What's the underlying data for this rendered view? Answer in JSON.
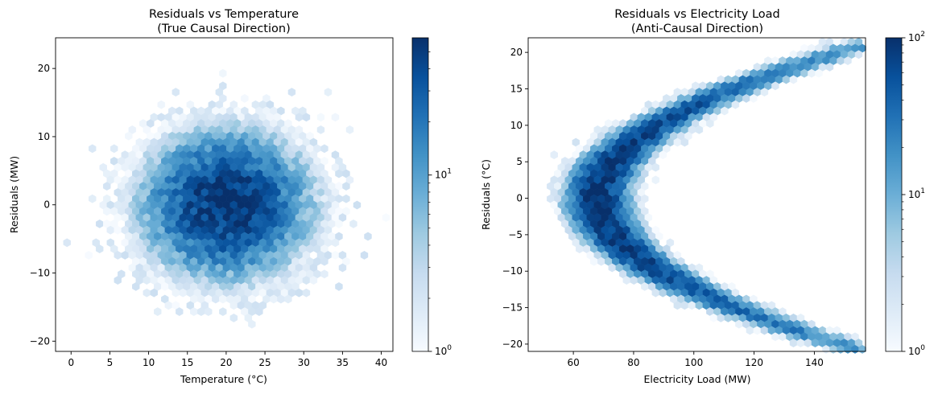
{
  "chart_data": [
    {
      "type": "hexbin",
      "title": "Residuals vs Temperature",
      "subtitle": "(True Causal Direction)",
      "xlabel": "Temperature (°C)",
      "ylabel": "Residuals (MW)",
      "xlim": [
        -2,
        41.5
      ],
      "ylim": [
        -21.5,
        24.5
      ],
      "xticks": [
        0,
        5,
        10,
        15,
        20,
        25,
        30,
        35,
        40
      ],
      "yticks": [
        -20,
        -10,
        0,
        10,
        20
      ],
      "xtick_labels": [
        "0",
        "5",
        "10",
        "15",
        "20",
        "25",
        "30",
        "35",
        "40"
      ],
      "ytick_labels": [
        "−20",
        "−10",
        "0",
        "10",
        "20"
      ],
      "colormap": "Blues",
      "color_scale": "log",
      "colorbar": {
        "min": 1,
        "max": 60,
        "ticks": [
          1,
          10
        ],
        "tick_labels": [
          {
            "base": "10",
            "exp": "0"
          },
          {
            "base": "10",
            "exp": "1"
          }
        ]
      },
      "distribution": {
        "shape": "blob",
        "center": [
          20,
          0
        ],
        "spread": [
          5,
          5
        ],
        "peak_count": 60
      }
    },
    {
      "type": "hexbin",
      "title": "Residuals vs Electricity Load",
      "subtitle": "(Anti-Causal Direction)",
      "xlabel": "Electricity Load (MW)",
      "ylabel": "Residuals (°C)",
      "xlim": [
        45,
        157
      ],
      "ylim": [
        -21,
        22
      ],
      "xticks": [
        60,
        80,
        100,
        120,
        140
      ],
      "yticks": [
        -20,
        -15,
        -10,
        -5,
        0,
        5,
        10,
        15,
        20
      ],
      "xtick_labels": [
        "60",
        "80",
        "100",
        "120",
        "140"
      ],
      "ytick_labels": [
        "−20",
        "−15",
        "−10",
        "−5",
        "0",
        "5",
        "10",
        "15",
        "20"
      ],
      "colormap": "Blues",
      "color_scale": "log",
      "colorbar": {
        "min": 1,
        "max": 100,
        "ticks": [
          1,
          10,
          100
        ],
        "tick_labels": [
          {
            "base": "10",
            "exp": "0"
          },
          {
            "base": "10",
            "exp": "1"
          },
          {
            "base": "10",
            "exp": "2"
          }
        ]
      },
      "distribution": {
        "shape": "parabola",
        "vertex": [
          68,
          0
        ],
        "curve": "x = 68 + 0.2 * y^2",
        "spread_x": 5,
        "peak_count": 100
      }
    }
  ]
}
